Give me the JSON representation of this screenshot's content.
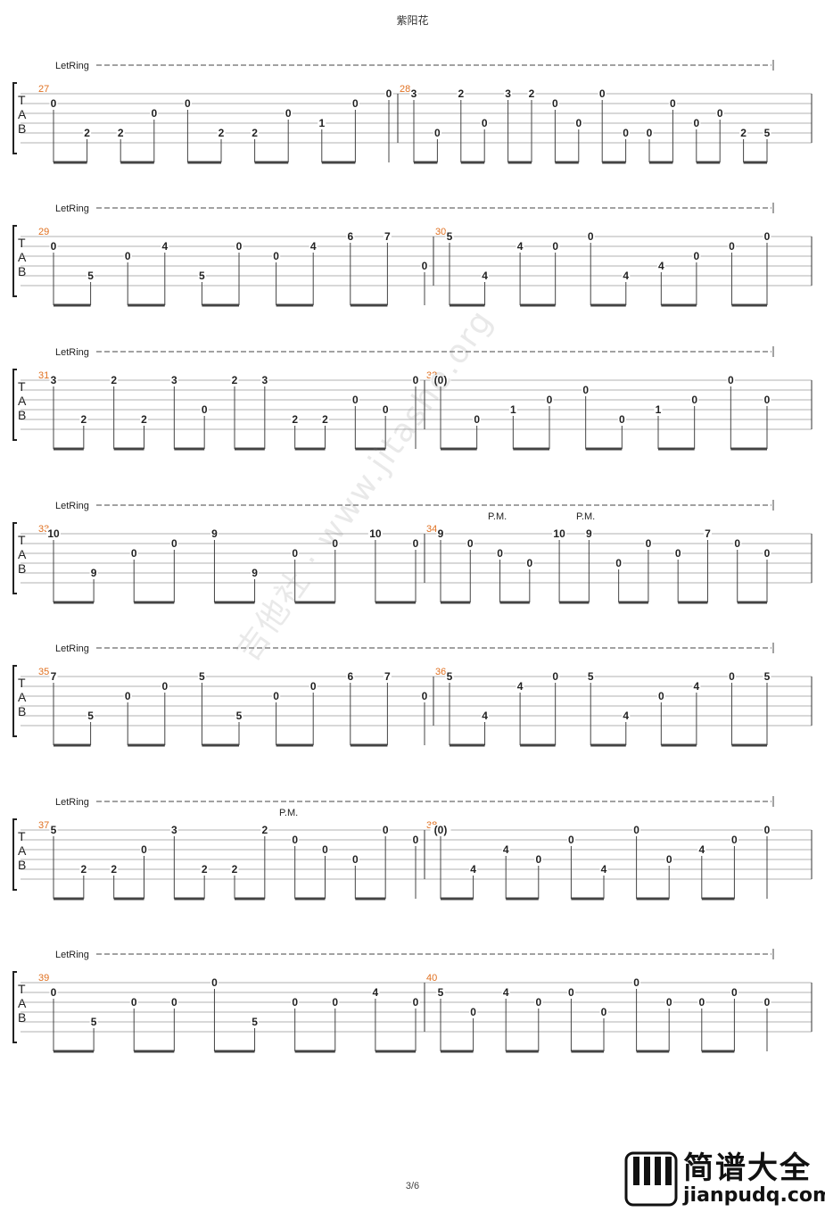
{
  "title": "紫阳花",
  "page_number": "3/6",
  "watermark": "吉他社 · www.jitashe.org",
  "logo": {
    "name": "简谱大全",
    "url": "jianpudq.com"
  },
  "tab_clef": [
    "T",
    "A",
    "B"
  ],
  "let_ring": "LetRing",
  "palm_mute": "P.M.",
  "colors": {
    "measure_number": "#e07020",
    "staff_line": "#999999",
    "text": "#222222"
  },
  "rows": [
    {
      "measures": [
        {
          "number": "27",
          "notes": [
            {
              "s": 2,
              "f": "0"
            },
            {
              "s": 5,
              "f": "2"
            },
            {
              "s": 5,
              "f": "2"
            },
            {
              "s": 3,
              "f": "0"
            },
            {
              "s": 2,
              "f": "0"
            },
            {
              "s": 5,
              "f": "2"
            },
            {
              "s": 5,
              "f": "2"
            },
            {
              "s": 3,
              "f": "0"
            },
            {
              "s": 4,
              "f": "1"
            },
            {
              "s": 2,
              "f": "0"
            },
            {
              "s": 1,
              "f": "0"
            }
          ]
        },
        {
          "number": "28",
          "notes": [
            {
              "s": 1,
              "f": "3"
            },
            {
              "s": 5,
              "f": "0"
            },
            {
              "s": 1,
              "f": "2"
            },
            {
              "s": 4,
              "f": "0"
            },
            {
              "s": 1,
              "f": "3"
            },
            {
              "s": 1,
              "f": "2"
            },
            {
              "s": 2,
              "f": "0"
            },
            {
              "s": 4,
              "f": "0"
            },
            {
              "s": 1,
              "f": "0"
            },
            {
              "s": 5,
              "f": "0"
            },
            {
              "s": 5,
              "f": "0"
            },
            {
              "s": 2,
              "f": "0"
            },
            {
              "s": 4,
              "f": "0"
            },
            {
              "s": 3,
              "f": "0"
            },
            {
              "s": 5,
              "f": "2"
            },
            {
              "s": 5,
              "f": "5"
            }
          ]
        }
      ],
      "pm": []
    },
    {
      "measures": [
        {
          "number": "29",
          "notes": [
            {
              "s": 2,
              "f": "0"
            },
            {
              "s": 5,
              "f": "5"
            },
            {
              "s": 3,
              "f": "0"
            },
            {
              "s": 2,
              "f": "4"
            },
            {
              "s": 5,
              "f": "5"
            },
            {
              "s": 2,
              "f": "0"
            },
            {
              "s": 3,
              "f": "0"
            },
            {
              "s": 2,
              "f": "4"
            },
            {
              "s": 1,
              "f": "6"
            },
            {
              "s": 1,
              "f": "7"
            },
            {
              "s": 4,
              "f": "0"
            }
          ]
        },
        {
          "number": "30",
          "notes": [
            {
              "s": 1,
              "f": "5"
            },
            {
              "s": 5,
              "f": "4"
            },
            {
              "s": 2,
              "f": "4"
            },
            {
              "s": 2,
              "f": "0"
            },
            {
              "s": 1,
              "f": "0"
            },
            {
              "s": 5,
              "f": "4"
            },
            {
              "s": 4,
              "f": "4"
            },
            {
              "s": 3,
              "f": "0"
            },
            {
              "s": 2,
              "f": "0"
            },
            {
              "s": 1,
              "f": "0"
            }
          ]
        }
      ],
      "pm": []
    },
    {
      "measures": [
        {
          "number": "31",
          "notes": [
            {
              "s": 1,
              "f": "3"
            },
            {
              "s": 5,
              "f": "2"
            },
            {
              "s": 1,
              "f": "2"
            },
            {
              "s": 5,
              "f": "2"
            },
            {
              "s": 1,
              "f": "3"
            },
            {
              "s": 4,
              "f": "0"
            },
            {
              "s": 1,
              "f": "2"
            },
            {
              "s": 1,
              "f": "3"
            },
            {
              "s": 5,
              "f": "2"
            },
            {
              "s": 5,
              "f": "2"
            },
            {
              "s": 3,
              "f": "0"
            },
            {
              "s": 4,
              "f": "0"
            },
            {
              "s": 1,
              "f": "0"
            }
          ]
        },
        {
          "number": "32",
          "notes": [
            {
              "s": 1,
              "f": "(0)"
            },
            {
              "s": 5,
              "f": "0"
            },
            {
              "s": 4,
              "f": "1"
            },
            {
              "s": 3,
              "f": "0"
            },
            {
              "s": 2,
              "f": "0"
            },
            {
              "s": 5,
              "f": "0"
            },
            {
              "s": 4,
              "f": "1"
            },
            {
              "s": 3,
              "f": "0"
            },
            {
              "s": 1,
              "f": "0"
            },
            {
              "s": 3,
              "f": "0"
            }
          ]
        }
      ],
      "pm": []
    },
    {
      "measures": [
        {
          "number": "33",
          "notes": [
            {
              "s": 1,
              "f": "10"
            },
            {
              "s": 5,
              "f": "9"
            },
            {
              "s": 3,
              "f": "0"
            },
            {
              "s": 2,
              "f": "0"
            },
            {
              "s": 1,
              "f": "9"
            },
            {
              "s": 5,
              "f": "9"
            },
            {
              "s": 3,
              "f": "0"
            },
            {
              "s": 2,
              "f": "0"
            },
            {
              "s": 1,
              "f": "10"
            },
            {
              "s": 2,
              "f": "0"
            }
          ]
        },
        {
          "number": "34",
          "notes": [
            {
              "s": 1,
              "f": "9"
            },
            {
              "s": 2,
              "f": "0"
            },
            {
              "s": 3,
              "f": "0"
            },
            {
              "s": 4,
              "f": "0"
            },
            {
              "s": 1,
              "f": "10"
            },
            {
              "s": 1,
              "f": "9"
            },
            {
              "s": 4,
              "f": "0"
            },
            {
              "s": 2,
              "f": "0"
            },
            {
              "s": 3,
              "f": "0"
            },
            {
              "s": 1,
              "f": "7"
            },
            {
              "s": 2,
              "f": "0"
            },
            {
              "s": 3,
              "f": "0"
            }
          ]
        }
      ],
      "pm": [
        "P.M.",
        "P.M."
      ]
    },
    {
      "measures": [
        {
          "number": "35",
          "notes": [
            {
              "s": 1,
              "f": "7"
            },
            {
              "s": 5,
              "f": "5"
            },
            {
              "s": 3,
              "f": "0"
            },
            {
              "s": 2,
              "f": "0"
            },
            {
              "s": 1,
              "f": "5"
            },
            {
              "s": 5,
              "f": "5"
            },
            {
              "s": 3,
              "f": "0"
            },
            {
              "s": 2,
              "f": "0"
            },
            {
              "s": 1,
              "f": "6"
            },
            {
              "s": 1,
              "f": "7"
            },
            {
              "s": 3,
              "f": "0"
            }
          ]
        },
        {
          "number": "36",
          "notes": [
            {
              "s": 1,
              "f": "5"
            },
            {
              "s": 5,
              "f": "4"
            },
            {
              "s": 2,
              "f": "4"
            },
            {
              "s": 1,
              "f": "0"
            },
            {
              "s": 1,
              "f": "5"
            },
            {
              "s": 5,
              "f": "4"
            },
            {
              "s": 3,
              "f": "0"
            },
            {
              "s": 2,
              "f": "4"
            },
            {
              "s": 1,
              "f": "0"
            },
            {
              "s": 1,
              "f": "5"
            }
          ]
        }
      ],
      "pm": []
    },
    {
      "measures": [
        {
          "number": "37",
          "notes": [
            {
              "s": 1,
              "f": "5"
            },
            {
              "s": 5,
              "f": "2"
            },
            {
              "s": 5,
              "f": "2"
            },
            {
              "s": 3,
              "f": "0"
            },
            {
              "s": 1,
              "f": "3"
            },
            {
              "s": 5,
              "f": "2"
            },
            {
              "s": 5,
              "f": "2"
            },
            {
              "s": 1,
              "f": "2"
            },
            {
              "s": 2,
              "f": "0"
            },
            {
              "s": 3,
              "f": "0"
            },
            {
              "s": 4,
              "f": "0"
            },
            {
              "s": 1,
              "f": "0"
            },
            {
              "s": 2,
              "f": "0"
            }
          ]
        },
        {
          "number": "38",
          "notes": [
            {
              "s": 1,
              "f": "(0)"
            },
            {
              "s": 5,
              "f": "4"
            },
            {
              "s": 3,
              "f": "4"
            },
            {
              "s": 4,
              "f": "0"
            },
            {
              "s": 2,
              "f": "0"
            },
            {
              "s": 5,
              "f": "4"
            },
            {
              "s": 1,
              "f": "0"
            },
            {
              "s": 4,
              "f": "0"
            },
            {
              "s": 3,
              "f": "4"
            },
            {
              "s": 2,
              "f": "0"
            },
            {
              "s": 1,
              "f": "0"
            }
          ]
        }
      ],
      "pm": [
        "P.M."
      ]
    },
    {
      "measures": [
        {
          "number": "39",
          "notes": [
            {
              "s": 2,
              "f": "0"
            },
            {
              "s": 5,
              "f": "5"
            },
            {
              "s": 3,
              "f": "0"
            },
            {
              "s": 3,
              "f": "0"
            },
            {
              "s": 1,
              "f": "0"
            },
            {
              "s": 5,
              "f": "5"
            },
            {
              "s": 3,
              "f": "0"
            },
            {
              "s": 3,
              "f": "0"
            },
            {
              "s": 2,
              "f": "4"
            },
            {
              "s": 3,
              "f": "0"
            }
          ]
        },
        {
          "number": "40",
          "notes": [
            {
              "s": 2,
              "f": "5"
            },
            {
              "s": 4,
              "f": "0"
            },
            {
              "s": 2,
              "f": "4"
            },
            {
              "s": 3,
              "f": "0"
            },
            {
              "s": 2,
              "f": "0"
            },
            {
              "s": 4,
              "f": "0"
            },
            {
              "s": 1,
              "f": "0"
            },
            {
              "s": 3,
              "f": "0"
            },
            {
              "s": 3,
              "f": "0"
            },
            {
              "s": 2,
              "f": "0"
            },
            {
              "s": 3,
              "f": "0"
            }
          ]
        }
      ],
      "pm": []
    }
  ]
}
